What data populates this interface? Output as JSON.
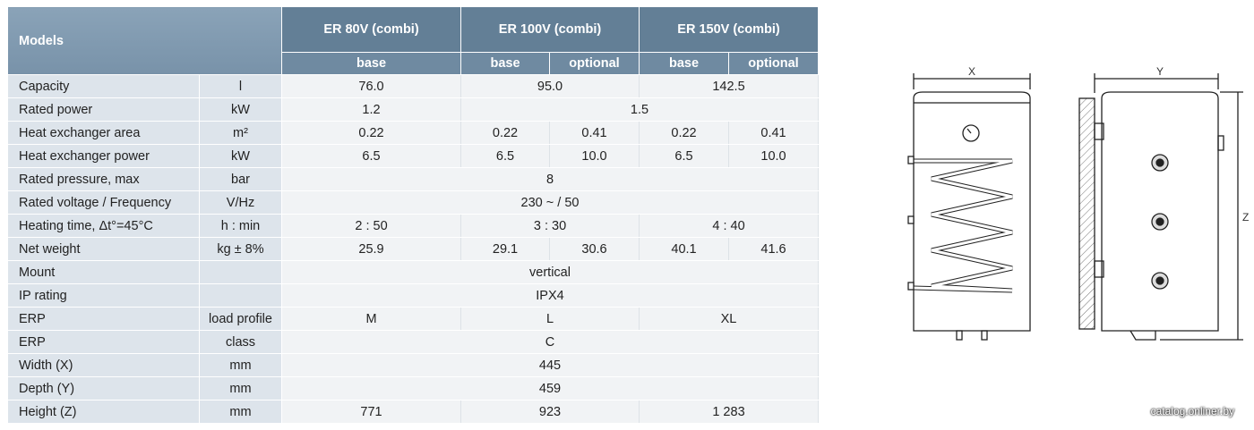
{
  "header": {
    "models": "Models",
    "groups": [
      {
        "name": "ER 80V (combi)",
        "subs": [
          "base"
        ]
      },
      {
        "name": "ER 100V (combi)",
        "subs": [
          "base",
          "optional"
        ]
      },
      {
        "name": "ER 150V (combi)",
        "subs": [
          "base",
          "optional"
        ]
      }
    ]
  },
  "rows": [
    {
      "label": "Capacity",
      "unit": "l",
      "values": [
        "76.0",
        "95.0",
        "142.5"
      ]
    },
    {
      "label": "Rated power",
      "unit": "kW",
      "values": [
        "1.2",
        "1.5"
      ]
    },
    {
      "label": "Heat exchanger area",
      "unit": "m²",
      "values": [
        "0.22",
        "0.22",
        "0.41",
        "0.22",
        "0.41"
      ]
    },
    {
      "label": "Heat exchanger power",
      "unit": "kW",
      "values": [
        "6.5",
        "6.5",
        "10.0",
        "6.5",
        "10.0"
      ]
    },
    {
      "label": "Rated pressure, max",
      "unit": "bar",
      "values": [
        "8"
      ]
    },
    {
      "label": "Rated voltage / Frequency",
      "unit": "V/Hz",
      "values": [
        "230 ~ / 50"
      ]
    },
    {
      "label": "Heating time, Δt°=45°C",
      "unit": "h : min",
      "values": [
        "2 : 50",
        "3 : 30",
        "4 : 40"
      ]
    },
    {
      "label": "Net weight",
      "unit": "kg ± 8%",
      "values": [
        "25.9",
        "29.1",
        "30.6",
        "40.1",
        "41.6"
      ]
    },
    {
      "label": "Mount",
      "unit": null,
      "values": [
        "vertical"
      ]
    },
    {
      "label": "IP rating",
      "unit": null,
      "values": [
        "IPX4"
      ]
    },
    {
      "label": "ERP",
      "unit": "load profile",
      "values": [
        "M",
        "L",
        "XL"
      ]
    },
    {
      "label": "ERP",
      "unit": "class",
      "values": [
        "C"
      ]
    },
    {
      "label": "Width (X)",
      "unit": "mm",
      "values": [
        "445"
      ]
    },
    {
      "label": "Depth (Y)",
      "unit": "mm",
      "values": [
        "459"
      ]
    },
    {
      "label": "Height (Z)",
      "unit": "mm",
      "values": [
        "771",
        "923",
        "1 283"
      ]
    }
  ],
  "diagram": {
    "x_label": "X",
    "y_label": "Y",
    "z_label": "Z"
  },
  "watermark": "catalog.onliner.by"
}
